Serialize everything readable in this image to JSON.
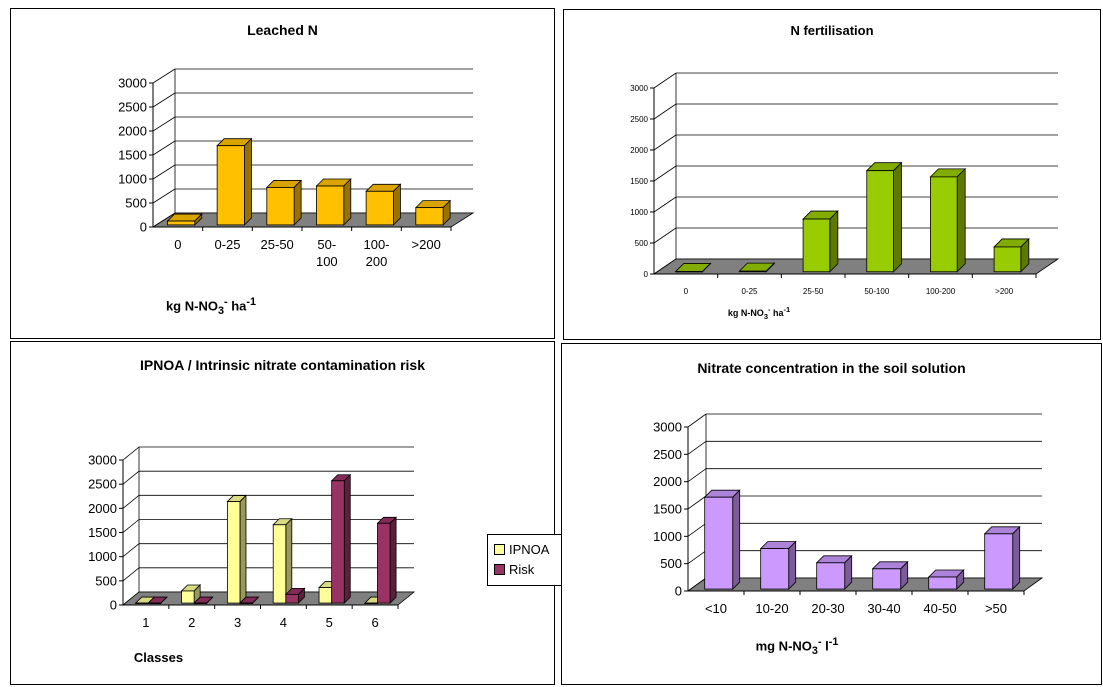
{
  "chart_data": [
    {
      "type": "bar",
      "title": "Leached N",
      "xlabel": "kg N-NO3- ha-1",
      "xlabel_parts": {
        "base": "kg N-NO",
        "sub": "3",
        "sup1": "-",
        "mid": " ha",
        "sup2": "-1"
      },
      "categories": [
        "0",
        "0-25",
        "25-50",
        "50-100",
        "100-200",
        ">200"
      ],
      "values": [
        80,
        1650,
        780,
        810,
        700,
        360
      ],
      "ylim": [
        0,
        3000
      ],
      "yticks": [
        0,
        500,
        1000,
        1500,
        2000,
        2500,
        3000
      ],
      "color": "#ffc000",
      "grid": true
    },
    {
      "type": "bar",
      "title": "N fertilisation",
      "xlabel": "kg N-NO3- ha-1",
      "xlabel_parts": {
        "base": "kg N-NO",
        "sub": "3",
        "sup1": "-",
        "mid": " ha",
        "sup2": "-1"
      },
      "categories": [
        "0",
        "0-25",
        "25-50",
        "50-100",
        "100-200",
        ">200"
      ],
      "values": [
        5,
        10,
        850,
        1630,
        1530,
        400
      ],
      "ylim": [
        0,
        3000
      ],
      "yticks": [
        0,
        500,
        1000,
        1500,
        2000,
        2500,
        3000
      ],
      "color": "#99cc00",
      "grid": true
    },
    {
      "type": "bar",
      "title": "IPNOA / Intrinsic nitrate contamination risk",
      "xlabel": "Classes",
      "categories": [
        "1",
        "2",
        "3",
        "4",
        "5",
        "6"
      ],
      "series": [
        {
          "name": "IPNOA",
          "values": [
            0,
            250,
            2100,
            1620,
            320,
            0
          ],
          "color": "#ffff99"
        },
        {
          "name": "Risk",
          "values": [
            0,
            0,
            0,
            180,
            2530,
            1650
          ],
          "color": "#993366"
        }
      ],
      "ylim": [
        0,
        3000
      ],
      "yticks": [
        0,
        500,
        1000,
        1500,
        2000,
        2500,
        3000
      ],
      "legend": "right",
      "grid": true
    },
    {
      "type": "bar",
      "title": "Nitrate concentration in the soil solution",
      "xlabel": "mg N-NO3- l-1",
      "xlabel_parts": {
        "base": "mg N-NO",
        "sub": "3",
        "sup1": "-",
        "mid": " l",
        "sup2": "-1"
      },
      "categories": [
        "<10",
        "10-20",
        "20-30",
        "30-40",
        "40-50",
        ">50"
      ],
      "values": [
        1680,
        740,
        480,
        370,
        220,
        1010
      ],
      "ylim": [
        0,
        3000
      ],
      "yticks": [
        0,
        500,
        1000,
        1500,
        2000,
        2500,
        3000
      ],
      "color": "#cc99ff",
      "grid": true
    }
  ]
}
